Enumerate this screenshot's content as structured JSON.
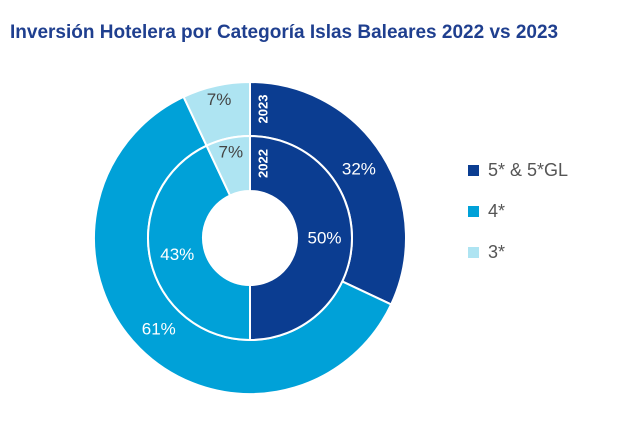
{
  "chart_data": {
    "type": "donut",
    "title": "Inversión Hotelera por Categoría Islas Baleares 2022 vs 2023",
    "categories": [
      "5* & 5*GL",
      "4*",
      "3*"
    ],
    "colors": [
      "#0b3d91",
      "#00a1d8",
      "#aee4f2"
    ],
    "rings": [
      {
        "name": "2023",
        "position": "outer",
        "values": [
          32,
          61,
          7
        ],
        "labels": [
          "32%",
          "61%",
          "7%"
        ]
      },
      {
        "name": "2022",
        "position": "inner",
        "values": [
          50,
          43,
          7
        ],
        "labels": [
          "50%",
          "43%",
          "7%"
        ]
      }
    ],
    "legend_position": "right"
  }
}
